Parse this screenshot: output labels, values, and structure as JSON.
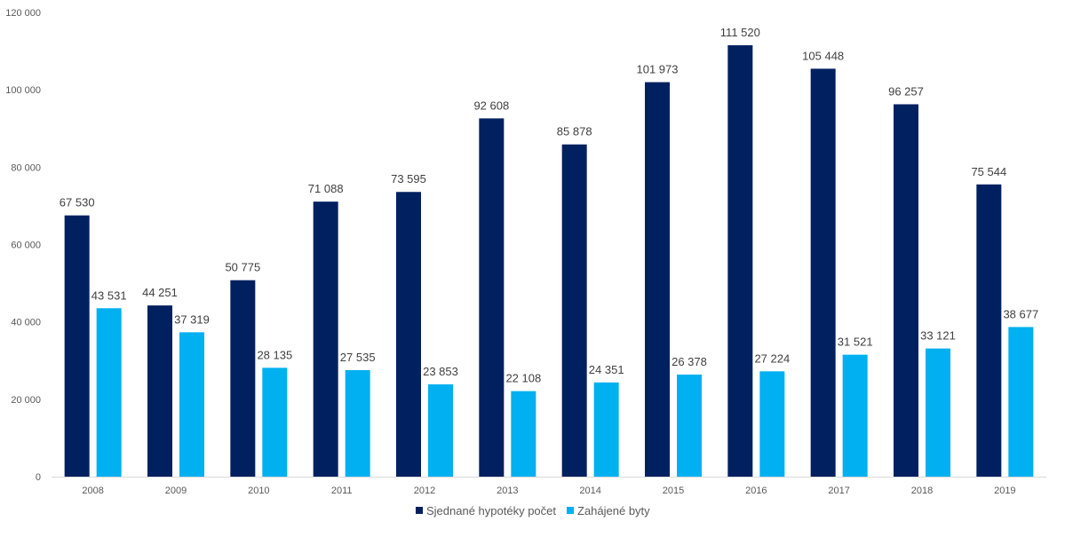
{
  "chart_data": {
    "type": "bar",
    "categories": [
      "2008",
      "2009",
      "2010",
      "2011",
      "2012",
      "2013",
      "2014",
      "2015",
      "2016",
      "2017",
      "2018",
      "2019"
    ],
    "series": [
      {
        "name": "Sjednané hypotéky počet",
        "color": "#002060",
        "values": [
          67530,
          44251,
          50775,
          71088,
          73595,
          92608,
          85878,
          101973,
          111520,
          105448,
          96257,
          75544
        ],
        "labels": [
          "67 530",
          "44 251",
          "50 775",
          "71 088",
          "73 595",
          "92 608",
          "85 878",
          "101 973",
          "111 520",
          "105 448",
          "96 257",
          "75 544"
        ]
      },
      {
        "name": "Zahájené byty",
        "color": "#00B0F0",
        "values": [
          43531,
          37319,
          28135,
          27535,
          23853,
          22108,
          24351,
          26378,
          27224,
          31521,
          33121,
          38677
        ],
        "labels": [
          "43 531",
          "37 319",
          "28 135",
          "27 535",
          "23 853",
          "22 108",
          "24 351",
          "26 378",
          "27 224",
          "31 521",
          "33 121",
          "38 677"
        ]
      }
    ],
    "title": "",
    "xlabel": "",
    "ylabel": "",
    "ylim": [
      0,
      120000
    ],
    "yticks": [
      0,
      20000,
      40000,
      60000,
      80000,
      100000,
      120000
    ],
    "ytick_labels": [
      "0",
      "20 000",
      "40 000",
      "60 000",
      "80 000",
      "100 000",
      "120 000"
    ],
    "grid": false,
    "legend_position": "bottom-center"
  }
}
